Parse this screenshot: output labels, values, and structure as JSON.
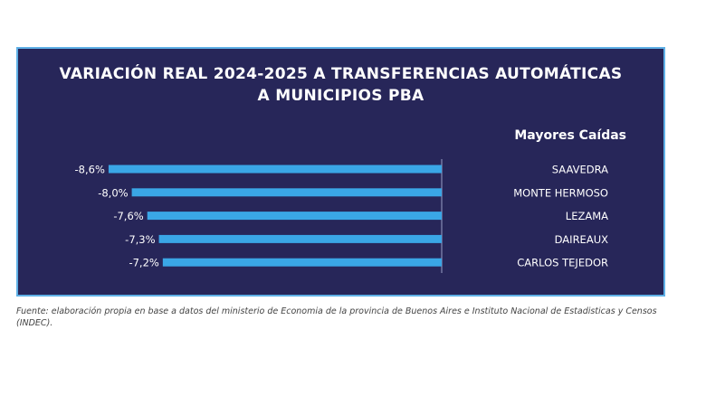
{
  "chart_data": {
    "type": "bar",
    "orientation": "horizontal",
    "title": [
      "VARIACIÓN REAL 2024-2025 A TRANSFERENCIAS AUTOMÁTICAS",
      "A MUNICIPIOS PBA"
    ],
    "subtitle": "Mayores Caídas",
    "categories": [
      "SAAVEDRA",
      "MONTE HERMOSO",
      "LEZAMA",
      "DAIREAUX",
      "CARLOS TEJEDOR"
    ],
    "values": [
      -8.6,
      -8.0,
      -7.6,
      -7.3,
      -7.2
    ],
    "data_labels": [
      "-8,6%",
      "-8,0%",
      "-7,6%",
      "-7,3%",
      "-7,2%"
    ],
    "unit": "%",
    "grid": false,
    "colors": {
      "bar": "#3aa6e6",
      "background": "#272659",
      "border": "#5fb0e6",
      "text": "#ffffff"
    }
  },
  "source_note": "Fuente: elaboración propia en base a datos del ministerio de Economia de la provincia de Buenos Aires e Instituto Nacional de Estadisticas y Censos (INDEC)."
}
